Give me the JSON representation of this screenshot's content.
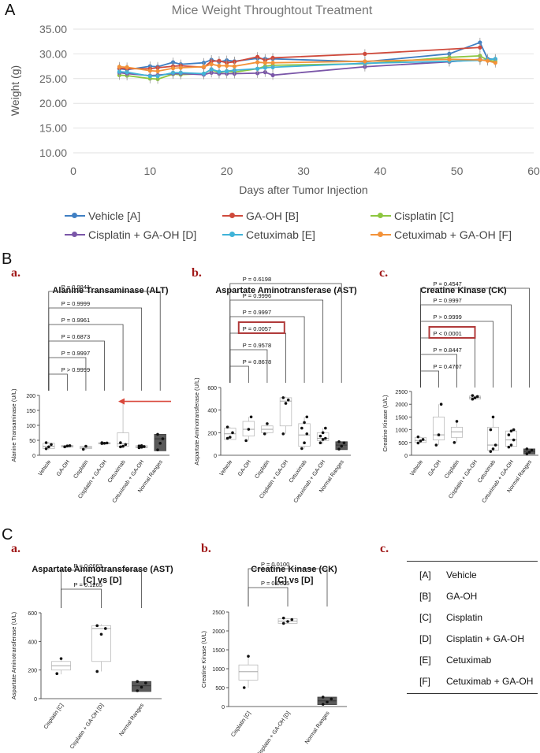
{
  "panel_labels": {
    "A": "A",
    "B": "B",
    "C": "C",
    "Ba": "a.",
    "Bb": "b.",
    "Bc": "c.",
    "Ca": "a.",
    "Cb": "b.",
    "Cc": "c."
  },
  "colors": {
    "vehicle": "#3f7fc3",
    "gaoh": "#cf4a3c",
    "cisplatin": "#8cc63f",
    "cis_gaoh": "#7a56a8",
    "cetux": "#3fb3d8",
    "cetux_gaoh": "#f39239",
    "box_fill": "#5a5a5a",
    "highlight": "#b03a3a",
    "arrow": "#d9473a"
  },
  "chart_data": [
    {
      "id": "weight",
      "type": "line",
      "title": "Mice Weight Throughtout Treatment",
      "xlabel": "Days after Tumor Injection",
      "ylabel": "Weight (g)",
      "xlim": [
        0,
        60
      ],
      "ylim": [
        10,
        35
      ],
      "xticks": [
        "0",
        "10",
        "20",
        "30",
        "40",
        "50",
        "60"
      ],
      "yticks": [
        "10.00",
        "15.00",
        "20.00",
        "25.00",
        "30.00",
        "35.00"
      ],
      "x": [
        6,
        7,
        10,
        11,
        13,
        14,
        17,
        18,
        19,
        20,
        21,
        24,
        25,
        26,
        38,
        49,
        53,
        54,
        55
      ],
      "series": [
        {
          "name": "Vehicle [A]",
          "color_key": "vehicle",
          "values": [
            27.0,
            26.8,
            27.5,
            27.4,
            28.3,
            27.9,
            28.2,
            28.8,
            28.4,
            28.7,
            28.5,
            29.1,
            29.0,
            29.0,
            28.4,
            30.0,
            32.3,
            29.0,
            28.9
          ]
        },
        {
          "name": "GA-OH [B]",
          "color_key": "gaoh",
          "values": [
            27.1,
            27.0,
            27.0,
            27.2,
            27.5,
            27.6,
            27.3,
            28.5,
            28.6,
            28.2,
            28.4,
            29.4,
            28.7,
            29.2,
            30.0,
            null,
            31.3,
            null,
            null
          ]
        },
        {
          "name": "Cisplatin [C]",
          "color_key": "cisplatin",
          "values": [
            25.7,
            25.6,
            25.0,
            24.9,
            25.9,
            25.8,
            26.0,
            26.8,
            26.2,
            26.5,
            26.3,
            27.0,
            27.5,
            27.7,
            28.0,
            29.3,
            29.6,
            28.7,
            28.5
          ]
        },
        {
          "name": "Cisplatin + GA-OH [D]",
          "color_key": "cis_gaoh",
          "values": [
            26.2,
            26.0,
            25.6,
            25.7,
            26.0,
            26.0,
            25.8,
            26.2,
            26.0,
            26.0,
            26.0,
            26.1,
            26.3,
            25.7,
            27.4,
            28.4,
            28.9,
            null,
            null
          ]
        },
        {
          "name": "Cetuximab [E]",
          "color_key": "cetux",
          "values": [
            26.4,
            26.3,
            25.5,
            25.5,
            26.2,
            26.2,
            26.0,
            26.9,
            26.4,
            26.5,
            26.7,
            27.0,
            27.2,
            27.3,
            28.1,
            28.5,
            28.7,
            28.8,
            29.0
          ]
        },
        {
          "name": "Cetuximab + GA-OH [F]",
          "color_key": "cetux_gaoh",
          "values": [
            27.4,
            27.3,
            26.6,
            26.5,
            27.1,
            27.2,
            27.4,
            27.9,
            27.6,
            27.6,
            27.5,
            28.3,
            28.2,
            28.2,
            28.5,
            28.9,
            28.8,
            28.6,
            28.2
          ]
        }
      ]
    },
    {
      "id": "alt",
      "type": "box",
      "title": "Alanine Transaminase (ALT)",
      "ylabel": "Alanine Transaminase (U/L)",
      "ylim": [
        0,
        200
      ],
      "yticks": [
        "0",
        "50",
        "100",
        "150",
        "200"
      ],
      "categories": [
        "Vehicle",
        "GA-OH",
        "Cisplatin",
        "Cisplatin + GA-OH",
        "Cetuximab",
        "Cetuximab + GA-OH",
        "Normal Ranges"
      ],
      "boxes": [
        {
          "q1": 22,
          "median": 30,
          "q3": 40,
          "min": 18,
          "max": 45,
          "points": [
            22,
            28,
            36,
            42
          ]
        },
        {
          "q1": 27,
          "median": 30,
          "q3": 33,
          "min": 27,
          "max": 33,
          "points": [
            28,
            31,
            32
          ]
        },
        {
          "q1": 22,
          "median": 26,
          "q3": 30,
          "min": 18,
          "max": 33,
          "points": [
            20,
            30
          ]
        },
        {
          "q1": 38,
          "median": 40,
          "q3": 42,
          "min": 38,
          "max": 42,
          "points": [
            39,
            40,
            41,
            42
          ]
        },
        {
          "q1": 30,
          "median": 38,
          "q3": 75,
          "min": 25,
          "max": 180,
          "points": [
            28,
            30,
            36,
            42,
            180
          ]
        },
        {
          "q1": 25,
          "median": 28,
          "q3": 32,
          "min": 22,
          "max": 33,
          "points": [
            25,
            27,
            29,
            31,
            32
          ]
        },
        {
          "q1": 15,
          "median": 55,
          "q3": 70,
          "min": 15,
          "max": 70,
          "points": [
            18,
            40,
            55,
            70
          ],
          "filled": true
        }
      ],
      "comparisons": [
        {
          "label": "P > 0.9999",
          "to": 1
        },
        {
          "label": "P = 0.9997",
          "to": 2
        },
        {
          "label": "P = 0.6873",
          "to": 3
        },
        {
          "label": "P = 0.9961",
          "to": 4
        },
        {
          "label": "P = 0.9999",
          "to": 5
        },
        {
          "label": "P = 0.9841",
          "to": 6
        }
      ]
    },
    {
      "id": "ast",
      "type": "box",
      "title": "Aspartate Aminotransferase (AST)",
      "ylabel": "Aspartate Aminotransferase (U/L)",
      "ylim": [
        0,
        600
      ],
      "yticks": [
        "0",
        "200",
        "400",
        "600"
      ],
      "categories": [
        "Vehicle",
        "GA-OH",
        "Cisplatin",
        "Cisplatin + GA-OH",
        "Cetuximab",
        "Cetuximab + GA-OH",
        "Normal Ranges"
      ],
      "boxes": [
        {
          "q1": 140,
          "median": 190,
          "q3": 240,
          "min": 140,
          "max": 250,
          "points": [
            150,
            160,
            200,
            250
          ]
        },
        {
          "q1": 170,
          "median": 230,
          "q3": 300,
          "min": 130,
          "max": 340,
          "points": [
            130,
            230,
            340
          ]
        },
        {
          "q1": 200,
          "median": 230,
          "q3": 260,
          "min": 190,
          "max": 280,
          "points": [
            190,
            280
          ]
        },
        {
          "q1": 260,
          "median": 480,
          "q3": 510,
          "min": 190,
          "max": 520,
          "points": [
            190,
            460,
            490,
            510
          ]
        },
        {
          "q1": 80,
          "median": 180,
          "q3": 280,
          "min": 60,
          "max": 340,
          "points": [
            60,
            110,
            190,
            240,
            290,
            340
          ]
        },
        {
          "q1": 130,
          "median": 150,
          "q3": 200,
          "min": 100,
          "max": 240,
          "points": [
            110,
            140,
            150,
            170,
            200,
            240
          ]
        },
        {
          "q1": 50,
          "median": 90,
          "q3": 120,
          "min": 50,
          "max": 120,
          "points": [
            55,
            80,
            110,
            120
          ],
          "filled": true
        }
      ],
      "comparisons": [
        {
          "label": "P = 0.8678",
          "to": 1
        },
        {
          "label": "P = 0.9578",
          "to": 2
        },
        {
          "label": "P = 0.0057",
          "to": 3,
          "highlight": true
        },
        {
          "label": "P = 0.9997",
          "to": 4
        },
        {
          "label": "P = 0.9996",
          "to": 5
        },
        {
          "label": "P = 0.6198",
          "to": 6
        }
      ]
    },
    {
      "id": "ck",
      "type": "box",
      "title": "Creatine Kinase (CK)",
      "ylabel": "Creatine Kinase (U/L)",
      "ylim": [
        0,
        2500
      ],
      "yticks": [
        "0",
        "500",
        "1000",
        "1500",
        "2000",
        "2500"
      ],
      "categories": [
        "Vehicle",
        "GA-OH",
        "Cisplatin",
        "Cisplatin + GA-OH",
        "Cetuximab",
        "Cetuximab + GA-OH",
        "Normal Ranges"
      ],
      "boxes": [
        {
          "q1": 500,
          "median": 580,
          "q3": 700,
          "min": 480,
          "max": 720,
          "points": [
            480,
            560,
            620,
            720
          ]
        },
        {
          "q1": 600,
          "median": 800,
          "q3": 1500,
          "min": 400,
          "max": 2000,
          "points": [
            400,
            800,
            2000
          ]
        },
        {
          "q1": 700,
          "median": 920,
          "q3": 1100,
          "min": 500,
          "max": 1330,
          "points": [
            500,
            1330
          ]
        },
        {
          "q1": 2200,
          "median": 2260,
          "q3": 2320,
          "min": 2200,
          "max": 2340,
          "points": [
            2200,
            2250,
            2300,
            2340
          ]
        },
        {
          "q1": 200,
          "median": 400,
          "q3": 1100,
          "min": 150,
          "max": 1500,
          "points": [
            150,
            250,
            400,
            1000,
            1500
          ]
        },
        {
          "q1": 350,
          "median": 600,
          "q3": 950,
          "min": 300,
          "max": 1000,
          "points": [
            320,
            400,
            600,
            800,
            950,
            1000
          ]
        },
        {
          "q1": 50,
          "median": 150,
          "q3": 250,
          "min": 50,
          "max": 250,
          "points": [
            60,
            120,
            200,
            250
          ],
          "filled": true
        }
      ],
      "comparisons": [
        {
          "label": "P = 0.4707",
          "to": 1
        },
        {
          "label": "P = 0.8447",
          "to": 2
        },
        {
          "label": "P < 0.0001",
          "to": 3,
          "highlight": true
        },
        {
          "label": "P > 0.9999",
          "to": 4
        },
        {
          "label": "P = 0.9997",
          "to": 5
        },
        {
          "label": "P = 0.4547",
          "to": 6
        }
      ]
    },
    {
      "id": "ast_cd",
      "type": "box",
      "title": "Aspartate Aminotransferase (AST)",
      "subtitle": "[C] vs [D]",
      "ylabel": "Aspartate Aminotransferase (U/L)",
      "ylim": [
        0,
        600
      ],
      "yticks": [
        "0",
        "200",
        "400",
        "600"
      ],
      "categories": [
        "Cisplatin [C]",
        "Cisplatin + GA-OH [D]",
        "Normal Ranges"
      ],
      "boxes": [
        {
          "q1": 200,
          "median": 230,
          "q3": 260,
          "min": 170,
          "max": 280,
          "points": [
            175,
            280
          ]
        },
        {
          "q1": 260,
          "median": 490,
          "q3": 510,
          "min": 190,
          "max": 520,
          "points": [
            190,
            450,
            490,
            510
          ]
        },
        {
          "q1": 50,
          "median": 90,
          "q3": 120,
          "min": 50,
          "max": 120,
          "points": [
            55,
            80,
            110,
            120
          ],
          "filled": true
        }
      ],
      "comparisons": [
        {
          "label": "P = 0.1265",
          "from": 0,
          "to": 1
        },
        {
          "label": "P = 0.2663",
          "from": 0,
          "to": 2
        }
      ]
    },
    {
      "id": "ck_cd",
      "type": "box",
      "title": "Creatine Kinase (CK)",
      "subtitle": "[C] vs [D]",
      "ylabel": "Creatine Kinase (U/L)",
      "ylim": [
        0,
        2500
      ],
      "yticks": [
        "0",
        "500",
        "1000",
        "1500",
        "2000",
        "2500"
      ],
      "categories": [
        "Cisplatin [C]",
        "Cisplatin + GA-OH [D]",
        "Normal Ranges"
      ],
      "boxes": [
        {
          "q1": 700,
          "median": 920,
          "q3": 1100,
          "min": 500,
          "max": 1330,
          "points": [
            500,
            1330
          ]
        },
        {
          "q1": 2200,
          "median": 2260,
          "q3": 2320,
          "min": 2200,
          "max": 2340,
          "points": [
            2200,
            2250,
            2300,
            2340
          ]
        },
        {
          "q1": 50,
          "median": 150,
          "q3": 250,
          "min": 50,
          "max": 250,
          "points": [
            60,
            120,
            200,
            250
          ],
          "filled": true
        }
      ],
      "comparisons": [
        {
          "label": "P = 0.0005",
          "from": 0,
          "to": 1
        },
        {
          "label": "P = 0.0100",
          "from": 0,
          "to": 2
        }
      ]
    }
  ],
  "key_table": {
    "rows": [
      {
        "code": "[A]",
        "name": "Vehicle"
      },
      {
        "code": "[B]",
        "name": "GA-OH"
      },
      {
        "code": "[C]",
        "name": "Cisplatin"
      },
      {
        "code": "[D]",
        "name": "Cisplatin + GA-OH"
      },
      {
        "code": "[E]",
        "name": "Cetuximab"
      },
      {
        "code": "[F]",
        "name": "Cetuximab + GA-OH"
      }
    ]
  }
}
